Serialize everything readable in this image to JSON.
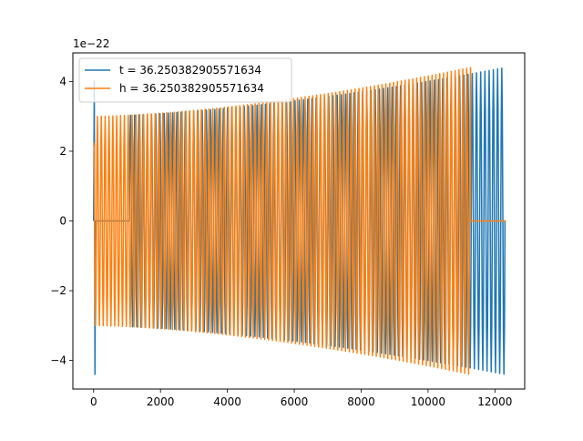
{
  "chart_data": {
    "type": "line",
    "title": "",
    "xlabel": "",
    "ylabel": "",
    "y_offset_label": "1e−22",
    "xlim": [
      -620,
      12890
    ],
    "ylim": [
      -4.82,
      4.82
    ],
    "x_ticks": [
      0,
      2000,
      4000,
      6000,
      8000,
      10000,
      12000
    ],
    "y_ticks": [
      -4,
      -2,
      0,
      2,
      4
    ],
    "x_tick_labels": [
      "0",
      "2000",
      "4000",
      "6000",
      "8000",
      "10000",
      "12000"
    ],
    "y_tick_labels": [
      "−4",
      "−2",
      "0",
      "2",
      "4"
    ],
    "grid": false,
    "legend_position": "top-left",
    "series": [
      {
        "name": "t = 36.250382905571634",
        "color": "#1f77b4",
        "x_start": 0,
        "x_end": 12300,
        "zero_until": 1070,
        "initial_spike": [
          4.0,
          -4.4
        ],
        "amplitude_start": 3.0,
        "amplitude_end": 4.4,
        "cycles_visible": 98
      },
      {
        "name": "h = 36.250382905571634",
        "color": "#ff7f0e",
        "x_start": 0,
        "x_end": 11270,
        "zero_from": 11270,
        "zero_to": 12330,
        "amplitude_start": 3.0,
        "amplitude_end": 4.4,
        "cycles_visible": 98
      }
    ]
  }
}
